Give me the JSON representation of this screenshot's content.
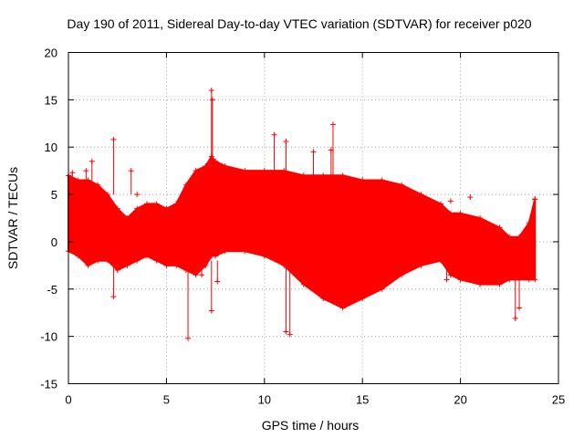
{
  "chart_data": {
    "type": "scatter",
    "title": "Day 190 of 2011, Sidereal Day-to-day VTEC variation (SDTVAR) for receiver p020",
    "xlabel": "GPS time / hours",
    "ylabel": "SDTVAR / TECUs",
    "xlim": [
      0,
      25
    ],
    "ylim": [
      -15,
      20
    ],
    "xticks": [
      0,
      5,
      10,
      15,
      20,
      25
    ],
    "yticks": [
      -15,
      -10,
      -5,
      0,
      5,
      10,
      15,
      20
    ],
    "xtick_labels": [
      "0",
      "5",
      "10",
      "15",
      "20",
      "25"
    ],
    "ytick_labels": [
      "-15",
      "-10",
      "-5",
      "0",
      "5",
      "10",
      "15",
      "20"
    ],
    "grid": true,
    "color": "#ff0000",
    "marker": "+",
    "envelope": {
      "x": [
        0.0,
        0.5,
        1.0,
        1.5,
        2.0,
        2.5,
        3.0,
        3.5,
        4.0,
        4.5,
        5.0,
        5.5,
        6.0,
        6.5,
        7.0,
        7.3,
        7.5,
        8.0,
        9.0,
        10.0,
        11.0,
        12.0,
        13.0,
        14.0,
        15.0,
        16.0,
        17.0,
        18.0,
        19.0,
        19.5,
        20.0,
        21.0,
        22.0,
        22.5,
        23.0,
        23.5,
        23.8
      ],
      "upper": [
        7.0,
        6.5,
        6.5,
        6.0,
        5.0,
        3.5,
        2.5,
        3.5,
        4.0,
        4.0,
        3.5,
        4.0,
        6.0,
        7.5,
        8.0,
        9.0,
        8.5,
        8.0,
        7.5,
        7.5,
        7.5,
        7.0,
        7.0,
        7.0,
        6.5,
        6.5,
        6.0,
        5.0,
        4.0,
        3.0,
        3.0,
        2.5,
        1.5,
        0.5,
        0.5,
        2.0,
        4.5
      ],
      "lower": [
        -1.0,
        -1.5,
        -2.5,
        -2.0,
        -2.0,
        -3.0,
        -2.5,
        -2.0,
        -1.5,
        -2.0,
        -2.5,
        -2.5,
        -3.0,
        -3.5,
        -2.5,
        -1.5,
        -1.5,
        -1.0,
        -1.0,
        -1.5,
        -2.5,
        -4.5,
        -6.0,
        -7.0,
        -6.0,
        -5.0,
        -3.5,
        -2.5,
        -2.0,
        -3.5,
        -4.0,
        -4.5,
        -4.5,
        -4.0,
        -4.0,
        -4.0,
        -4.0
      ]
    },
    "outliers": [
      {
        "x": 0.2,
        "y": 7.3
      },
      {
        "x": 0.9,
        "y": 7.5
      },
      {
        "x": 1.2,
        "y": 8.5
      },
      {
        "x": 2.3,
        "y": 10.8
      },
      {
        "x": 2.3,
        "y": -5.8
      },
      {
        "x": 3.2,
        "y": 7.5
      },
      {
        "x": 3.5,
        "y": 5.0
      },
      {
        "x": 6.1,
        "y": -10.2
      },
      {
        "x": 6.8,
        "y": -3.5
      },
      {
        "x": 7.3,
        "y": 16.0
      },
      {
        "x": 7.35,
        "y": 15.0
      },
      {
        "x": 7.3,
        "y": -7.3
      },
      {
        "x": 7.6,
        "y": -4.2
      },
      {
        "x": 10.5,
        "y": 11.3
      },
      {
        "x": 11.1,
        "y": 10.6
      },
      {
        "x": 11.1,
        "y": -9.5
      },
      {
        "x": 11.3,
        "y": -9.8
      },
      {
        "x": 12.5,
        "y": 9.5
      },
      {
        "x": 13.5,
        "y": 12.4
      },
      {
        "x": 13.4,
        "y": 9.7
      },
      {
        "x": 19.5,
        "y": 4.3
      },
      {
        "x": 20.5,
        "y": 4.7
      },
      {
        "x": 19.3,
        "y": -4.0
      },
      {
        "x": 19.5,
        "y": -3.5
      },
      {
        "x": 22.8,
        "y": -8.1
      },
      {
        "x": 23.0,
        "y": -7.0
      },
      {
        "x": 23.8,
        "y": 4.5
      }
    ]
  }
}
